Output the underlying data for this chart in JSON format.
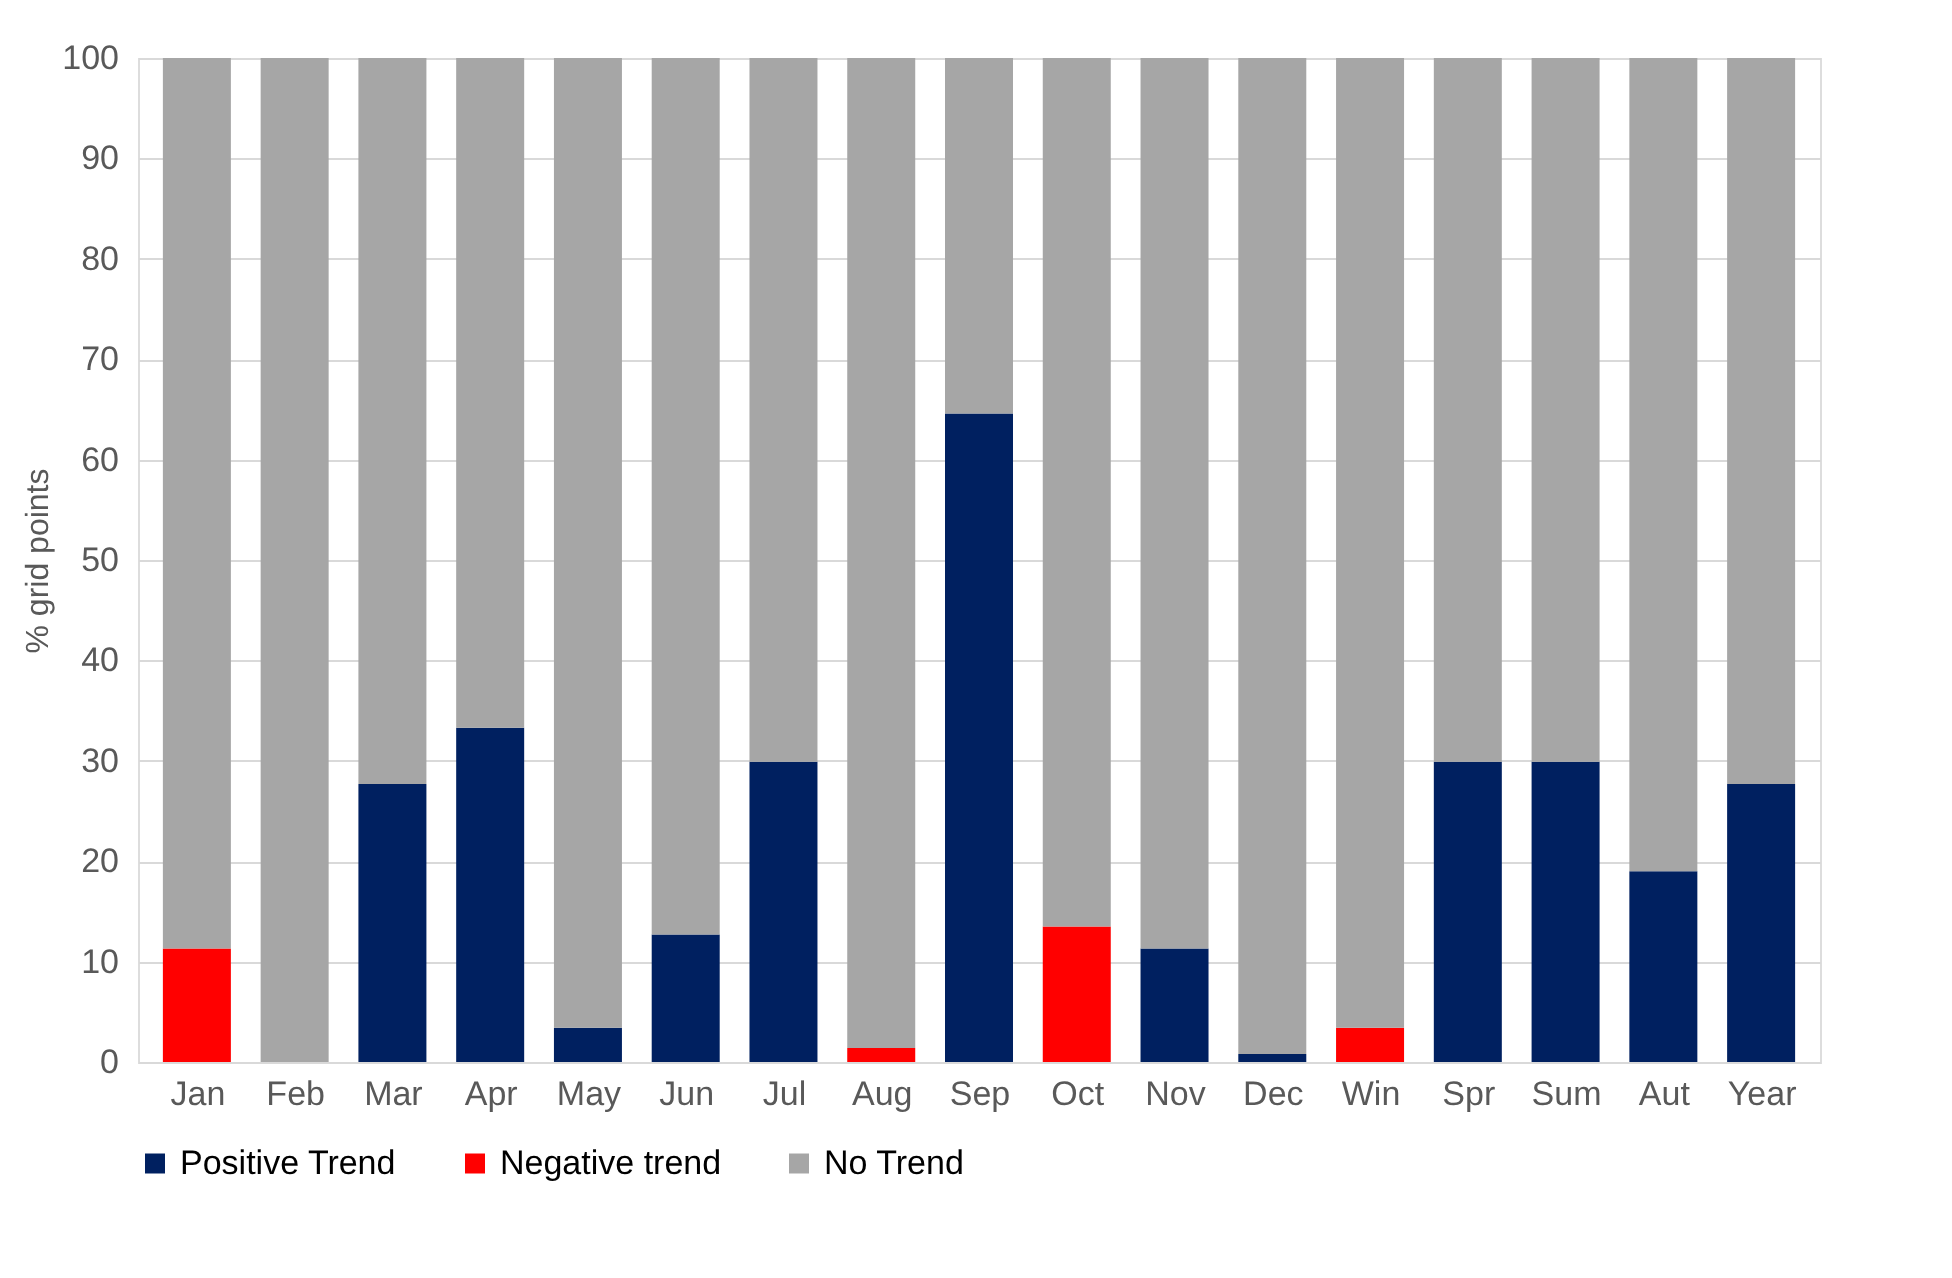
{
  "chart_data": {
    "type": "bar",
    "stacked": true,
    "ylabel": "% grid points",
    "categories": [
      "Jan",
      "Feb",
      "Mar",
      "Apr",
      "May",
      "Jun",
      "Jul",
      "Aug",
      "Sep",
      "Oct",
      "Nov",
      "Dec",
      "Win",
      "Spr",
      "Sum",
      "Aut",
      "Year"
    ],
    "series": [
      {
        "name": "Positive Trend",
        "color": "#002060",
        "values": [
          0,
          0,
          27.7,
          33.3,
          3.4,
          12.7,
          29.9,
          0,
          64.6,
          0,
          11.3,
          0.8,
          0,
          29.9,
          29.9,
          19,
          27.7
        ]
      },
      {
        "name": "Negative trend",
        "color": "#ff0000",
        "values": [
          11.3,
          0,
          0,
          0,
          0,
          0,
          0,
          1.4,
          0,
          13.5,
          0,
          0,
          3.4,
          0,
          0,
          0,
          0
        ]
      },
      {
        "name": "No Trend",
        "color": "#a6a6a6",
        "values": [
          88.7,
          100,
          72.3,
          66.7,
          96.6,
          87.3,
          70.1,
          98.6,
          35.4,
          86.5,
          88.7,
          99.2,
          96.6,
          70.1,
          70.1,
          81,
          72.3
        ]
      }
    ],
    "ylim": [
      0,
      100
    ],
    "yticks": [
      0,
      10,
      20,
      30,
      40,
      50,
      60,
      70,
      80,
      90,
      100
    ],
    "grid": "y",
    "legend": "bottom"
  }
}
